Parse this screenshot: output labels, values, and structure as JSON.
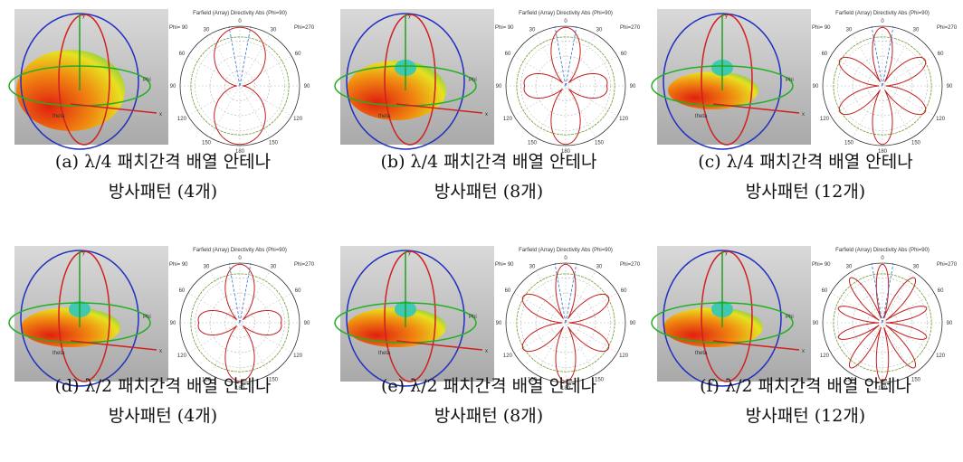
{
  "panels": [
    {
      "caption_line1": "(a) λ/4 패치간격 배열 안테나",
      "caption_line2": "방사패턴 (4개)"
    },
    {
      "caption_line1": "(b) λ/4 패치간격 배열 안테나",
      "caption_line2": "방사패턴 (8개)"
    },
    {
      "caption_line1": "(c) λ/4 패치간격 배열 안테나",
      "caption_line2": "방사패턴 (12개)"
    },
    {
      "caption_line1": "(d) λ/2 패치간격 배열 안테나",
      "caption_line2": "방사패턴 (4개)"
    },
    {
      "caption_line1": "(e) λ/2 패치간격 배열 안테나",
      "caption_line2": "방사패턴 (8개)"
    },
    {
      "caption_line1": "(f) λ/2 패치간격 배열 안테나",
      "caption_line2": "방사패턴 (12개)"
    }
  ],
  "plot_title": "Farfield (Array) Directivity Abs (Phi=90)",
  "phi_left": "Phi= 90",
  "phi_right": "Phi=270",
  "angle_labels": [
    "0",
    "30",
    "60",
    "90",
    "120",
    "150",
    "180"
  ],
  "axis_labels": [
    "y",
    "x",
    "Phi",
    "theta"
  ]
}
